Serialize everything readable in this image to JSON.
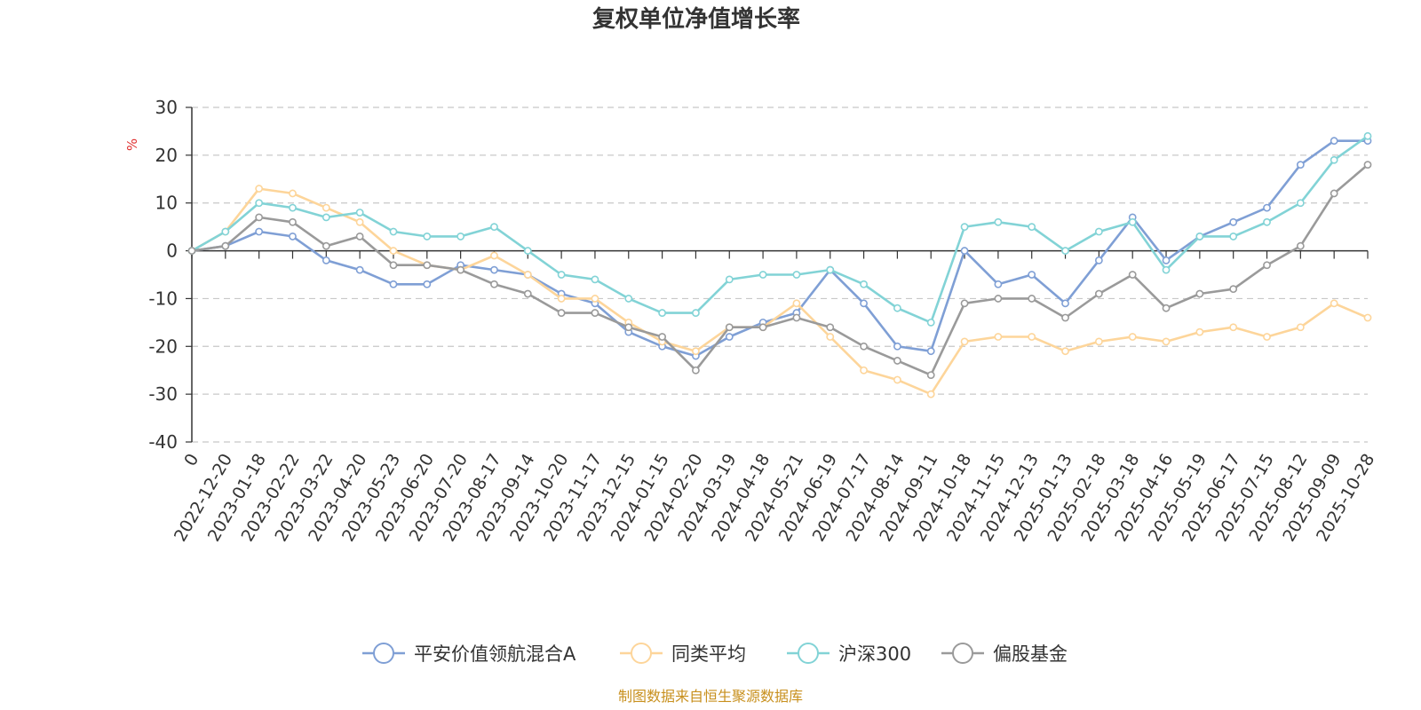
{
  "chart_data": {
    "type": "line",
    "title": "复权单位净值增长率",
    "ylabel": "%",
    "ylim": [
      -40,
      30
    ],
    "yticks": [
      30,
      20,
      10,
      0,
      -10,
      -20,
      -30,
      -40
    ],
    "grid": true,
    "legend_position": "bottom",
    "source": "制图数据来自恒生聚源数据库",
    "x": [
      "0",
      "2022-12-20",
      "2023-01-18",
      "2023-02-22",
      "2023-03-22",
      "2023-04-20",
      "2023-05-23",
      "2023-06-20",
      "2023-07-20",
      "2023-08-17",
      "2023-09-14",
      "2023-10-20",
      "2023-11-17",
      "2023-12-15",
      "2024-01-15",
      "2024-02-20",
      "2024-03-19",
      "2024-04-18",
      "2024-05-21",
      "2024-06-19",
      "2024-07-17",
      "2024-08-14",
      "2024-09-11",
      "2024-10-18",
      "2024-11-15",
      "2024-12-13",
      "2025-01-13",
      "2025-02-18",
      "2025-03-18",
      "2025-04-16",
      "2025-05-19",
      "2025-06-17",
      "2025-07-15",
      "2025-08-12",
      "2025-09-09",
      "2025-10-28"
    ],
    "series": [
      {
        "name": "平安价值领航混合A",
        "color": "#7f9fd5",
        "values": [
          0,
          1,
          4,
          3,
          -2,
          -4,
          -7,
          -7,
          -3,
          -4,
          -5,
          -9,
          -11,
          -17,
          -20,
          -22,
          -18,
          -15,
          -13,
          -4,
          -11,
          -20,
          -21,
          0,
          -7,
          -5,
          -11,
          -2,
          7,
          -2,
          3,
          6,
          9,
          18,
          23,
          23
        ]
      },
      {
        "name": "同类平均",
        "color": "#fdd59a",
        "values": [
          0,
          4,
          13,
          12,
          9,
          6,
          0,
          -3,
          -4,
          -1,
          -5,
          -10,
          -10,
          -15,
          -19,
          -21,
          -16,
          -16,
          -11,
          -18,
          -25,
          -27,
          -30,
          -19,
          -18,
          -18,
          -21,
          -19,
          -18,
          -19,
          -17,
          -16,
          -18,
          -16,
          -11,
          -14
        ]
      },
      {
        "name": "沪深300",
        "color": "#82d3d6",
        "values": [
          0,
          4,
          10,
          9,
          7,
          8,
          4,
          3,
          3,
          5,
          0,
          -5,
          -6,
          -10,
          -13,
          -13,
          -6,
          -5,
          -5,
          -4,
          -7,
          -12,
          -15,
          5,
          6,
          5,
          0,
          4,
          6,
          -4,
          3,
          3,
          6,
          10,
          19,
          24
        ]
      },
      {
        "name": "偏股基金",
        "color": "#9a9a9a",
        "values": [
          0,
          1,
          7,
          6,
          1,
          3,
          -3,
          -3,
          -4,
          -7,
          -9,
          -13,
          -13,
          -16,
          -18,
          -25,
          -16,
          -16,
          -14,
          -16,
          -20,
          -23,
          -26,
          -11,
          -10,
          -10,
          -14,
          -9,
          -5,
          -12,
          -9,
          -8,
          -3,
          1,
          12,
          18
        ]
      }
    ]
  }
}
